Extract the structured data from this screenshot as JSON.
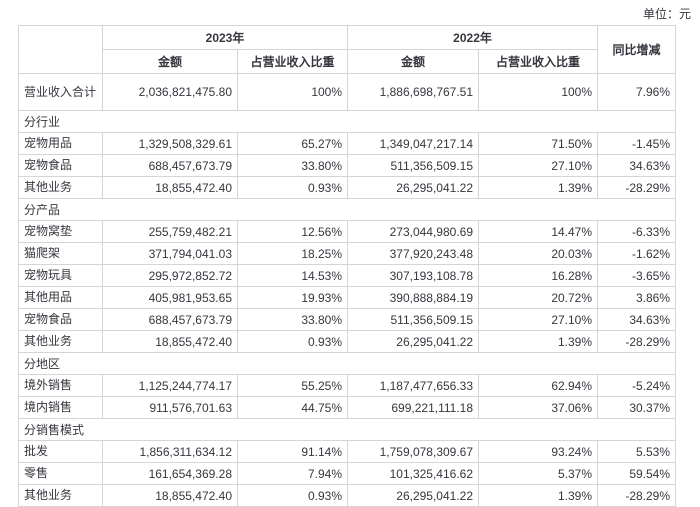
{
  "unit_label": "单位：元",
  "colors": {
    "text": "#36363e",
    "border": "#d5d5d5",
    "background": "#ffffff"
  },
  "table": {
    "headers": {
      "y2023": "2023年",
      "y2022": "2022年",
      "amount": "金额",
      "ratio": "占营业收入比重",
      "yoy": "同比增减"
    },
    "rows": [
      {
        "type": "total",
        "label": "营业收入合计",
        "a2023": "2,036,821,475.80",
        "r2023": "100%",
        "a2022": "1,886,698,767.51",
        "r2022": "100%",
        "yoy": "7.96%"
      },
      {
        "type": "section",
        "label": "分行业"
      },
      {
        "type": "data",
        "label": "宠物用品",
        "a2023": "1,329,508,329.61",
        "r2023": "65.27%",
        "a2022": "1,349,047,217.14",
        "r2022": "71.50%",
        "yoy": "-1.45%"
      },
      {
        "type": "data",
        "label": "宠物食品",
        "a2023": "688,457,673.79",
        "r2023": "33.80%",
        "a2022": "511,356,509.15",
        "r2022": "27.10%",
        "yoy": "34.63%"
      },
      {
        "type": "data",
        "label": "其他业务",
        "a2023": "18,855,472.40",
        "r2023": "0.93%",
        "a2022": "26,295,041.22",
        "r2022": "1.39%",
        "yoy": "-28.29%"
      },
      {
        "type": "section",
        "label": "分产品"
      },
      {
        "type": "data",
        "label": "宠物窝垫",
        "a2023": "255,759,482.21",
        "r2023": "12.56%",
        "a2022": "273,044,980.69",
        "r2022": "14.47%",
        "yoy": "-6.33%"
      },
      {
        "type": "data",
        "label": "猫爬架",
        "a2023": "371,794,041.03",
        "r2023": "18.25%",
        "a2022": "377,920,243.48",
        "r2022": "20.03%",
        "yoy": "-1.62%"
      },
      {
        "type": "data",
        "label": "宠物玩具",
        "a2023": "295,972,852.72",
        "r2023": "14.53%",
        "a2022": "307,193,108.78",
        "r2022": "16.28%",
        "yoy": "-3.65%"
      },
      {
        "type": "data",
        "label": "其他用品",
        "a2023": "405,981,953.65",
        "r2023": "19.93%",
        "a2022": "390,888,884.19",
        "r2022": "20.72%",
        "yoy": "3.86%"
      },
      {
        "type": "data",
        "label": "宠物食品",
        "a2023": "688,457,673.79",
        "r2023": "33.80%",
        "a2022": "511,356,509.15",
        "r2022": "27.10%",
        "yoy": "34.63%"
      },
      {
        "type": "data",
        "label": "其他业务",
        "a2023": "18,855,472.40",
        "r2023": "0.93%",
        "a2022": "26,295,041.22",
        "r2022": "1.39%",
        "yoy": "-28.29%"
      },
      {
        "type": "section",
        "label": "分地区"
      },
      {
        "type": "data",
        "label": "境外销售",
        "a2023": "1,125,244,774.17",
        "r2023": "55.25%",
        "a2022": "1,187,477,656.33",
        "r2022": "62.94%",
        "yoy": "-5.24%"
      },
      {
        "type": "data",
        "label": "境内销售",
        "a2023": "911,576,701.63",
        "r2023": "44.75%",
        "a2022": "699,221,111.18",
        "r2022": "37.06%",
        "yoy": "30.37%"
      },
      {
        "type": "section",
        "label": "分销售模式"
      },
      {
        "type": "data",
        "label": "批发",
        "a2023": "1,856,311,634.12",
        "r2023": "91.14%",
        "a2022": "1,759,078,309.67",
        "r2022": "93.24%",
        "yoy": "5.53%"
      },
      {
        "type": "data",
        "label": "零售",
        "a2023": "161,654,369.28",
        "r2023": "7.94%",
        "a2022": "101,325,416.62",
        "r2022": "5.37%",
        "yoy": "59.54%"
      },
      {
        "type": "data",
        "label": "其他业务",
        "a2023": "18,855,472.40",
        "r2023": "0.93%",
        "a2022": "26,295,041.22",
        "r2022": "1.39%",
        "yoy": "-28.29%"
      }
    ]
  }
}
